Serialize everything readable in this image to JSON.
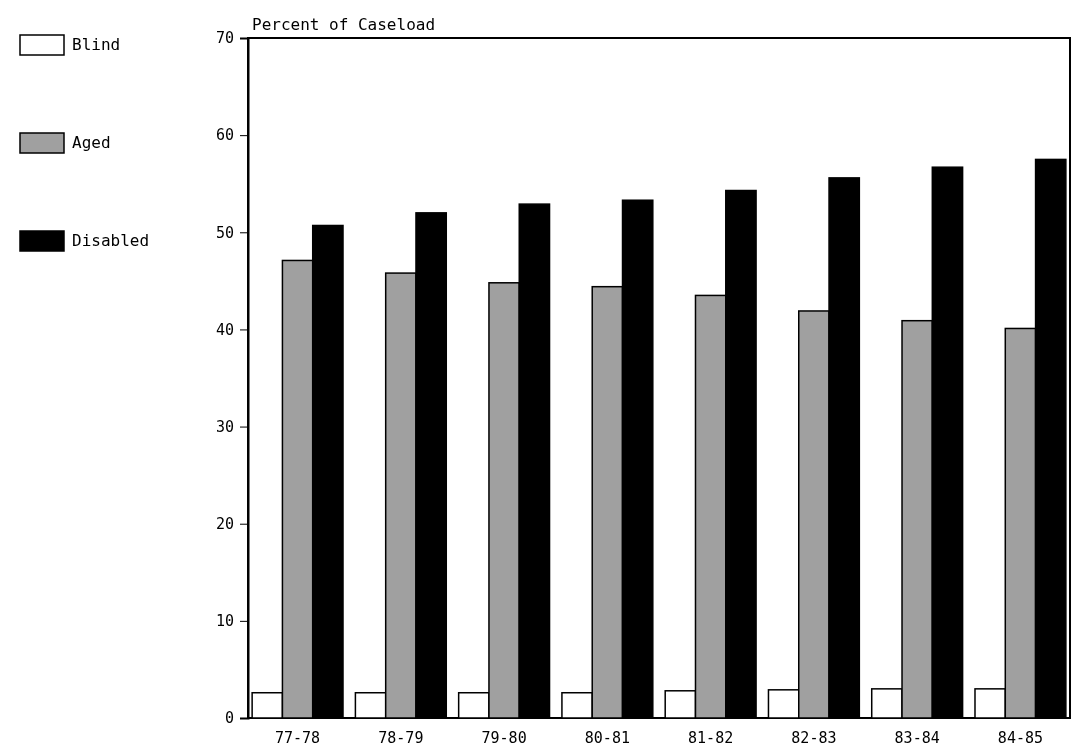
{
  "chart_data": {
    "type": "bar",
    "title": "Percent of Caseload",
    "categories": [
      "77-78",
      "78-79",
      "79-80",
      "80-81",
      "81-82",
      "82-83",
      "83-84",
      "84-85"
    ],
    "series": [
      {
        "name": "Blind",
        "color": "#ffffff",
        "values": [
          2.6,
          2.6,
          2.6,
          2.6,
          2.8,
          2.9,
          3.0,
          3.0
        ]
      },
      {
        "name": "Aged",
        "color": "#a0a0a0",
        "values": [
          47.1,
          45.8,
          44.8,
          44.4,
          43.5,
          41.9,
          40.9,
          40.1
        ]
      },
      {
        "name": "Disabled",
        "color": "#000000",
        "values": [
          50.7,
          52.0,
          52.9,
          53.3,
          54.3,
          55.6,
          56.7,
          57.5
        ]
      }
    ],
    "ylim": [
      0,
      70
    ],
    "yticks": [
      0,
      10,
      20,
      30,
      40,
      50,
      60,
      70
    ],
    "grid": false,
    "legend": "left"
  }
}
